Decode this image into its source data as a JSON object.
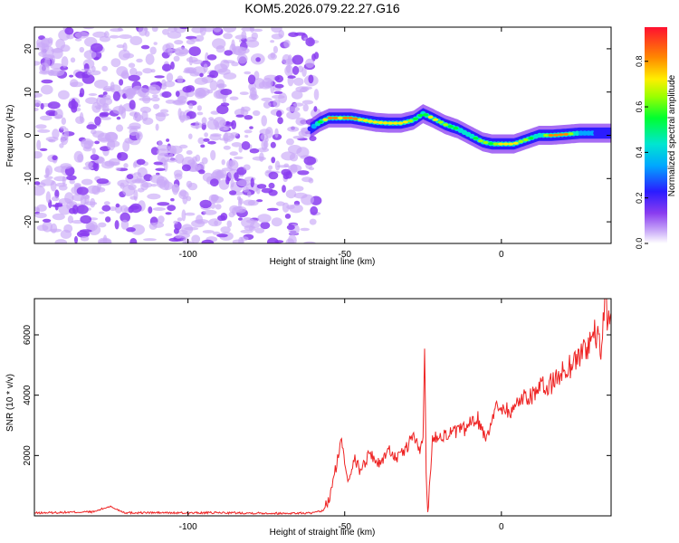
{
  "title": "KOM5.2026.079.22.27.G16",
  "colors": {
    "snr_line": "#ee2222",
    "scatter": "#8a3cf0",
    "axis": "#000000"
  },
  "chart_data": [
    {
      "type": "heatmap",
      "name": "spectrogram",
      "xlabel": "Height of straight line (km)",
      "ylabel": "Frequency (Hz)",
      "xlim": [
        -149,
        35
      ],
      "ylim": [
        -25,
        25
      ],
      "x_ticks": [
        -100,
        -50,
        0
      ],
      "y_ticks": [
        -20,
        -10,
        0,
        10,
        20
      ],
      "noise_region_x": [
        -149,
        -59
      ],
      "ridge": {
        "description": "narrow band of high normalized amplitude following the signal frequency",
        "x": [
          -61,
          -58,
          -55,
          -52,
          -48,
          -44,
          -40,
          -36,
          -32,
          -28,
          -25,
          -22,
          -18,
          -14,
          -10,
          -6,
          -3,
          0,
          4,
          8,
          12,
          16,
          20,
          25,
          30,
          35
        ],
        "freq_hz": [
          1.5,
          3,
          4,
          4,
          4,
          3.5,
          3,
          2.8,
          2.8,
          3.5,
          5,
          4,
          2.5,
          1.5,
          0,
          -1.5,
          -2,
          -2,
          -2,
          -1,
          0,
          0,
          0.2,
          0.5,
          0.5,
          0.5
        ],
        "amplitude": [
          0.35,
          0.6,
          0.9,
          0.85,
          0.9,
          0.8,
          0.85,
          0.75,
          0.85,
          0.7,
          0.6,
          0.8,
          0.7,
          0.6,
          0.45,
          0.75,
          0.6,
          0.85,
          0.8,
          0.7,
          0.5,
          0.95,
          0.95,
          0.45,
          0.35,
          0.3
        ]
      },
      "colorbar": {
        "label": "Normalized spectral amplitude",
        "range": [
          0,
          0.95
        ],
        "ticks": [
          "0.0",
          "0.2",
          "0.4",
          "0.6",
          "0.8"
        ]
      }
    },
    {
      "type": "line",
      "name": "snr",
      "xlabel": "Height of straight line (km)",
      "ylabel": "SNR (10 * v/v)",
      "xlim": [
        -149,
        35
      ],
      "ylim": [
        0,
        7200
      ],
      "x_ticks": [
        -100,
        -50,
        0
      ],
      "y_ticks": [
        2000,
        4000,
        6000
      ],
      "series": [
        {
          "name": "SNR",
          "x": [
            -149,
            -140,
            -130,
            -125,
            -120,
            -110,
            -100,
            -90,
            -80,
            -70,
            -60,
            -57,
            -55,
            -53,
            -51,
            -49,
            -47,
            -45,
            -42,
            -39,
            -36,
            -33,
            -30,
            -28,
            -26,
            -25,
            -24.5,
            -24,
            -23.5,
            -22,
            -20,
            -17,
            -14,
            -11,
            -8,
            -5,
            -2,
            0,
            3,
            6,
            9,
            12,
            15,
            18,
            21,
            24,
            27,
            30,
            32,
            33,
            34,
            35
          ],
          "y": [
            80,
            100,
            120,
            300,
            90,
            90,
            80,
            90,
            80,
            70,
            80,
            150,
            500,
            1500,
            2500,
            1200,
            1900,
            1500,
            2100,
            1700,
            2200,
            1900,
            2300,
            2700,
            2100,
            2500,
            5800,
            1300,
            100,
            2500,
            2700,
            2700,
            2800,
            2900,
            3300,
            2600,
            3500,
            3700,
            3400,
            3900,
            4000,
            4200,
            4300,
            4600,
            4900,
            5200,
            5600,
            6000,
            5500,
            7200,
            6500,
            6700
          ]
        }
      ]
    }
  ]
}
